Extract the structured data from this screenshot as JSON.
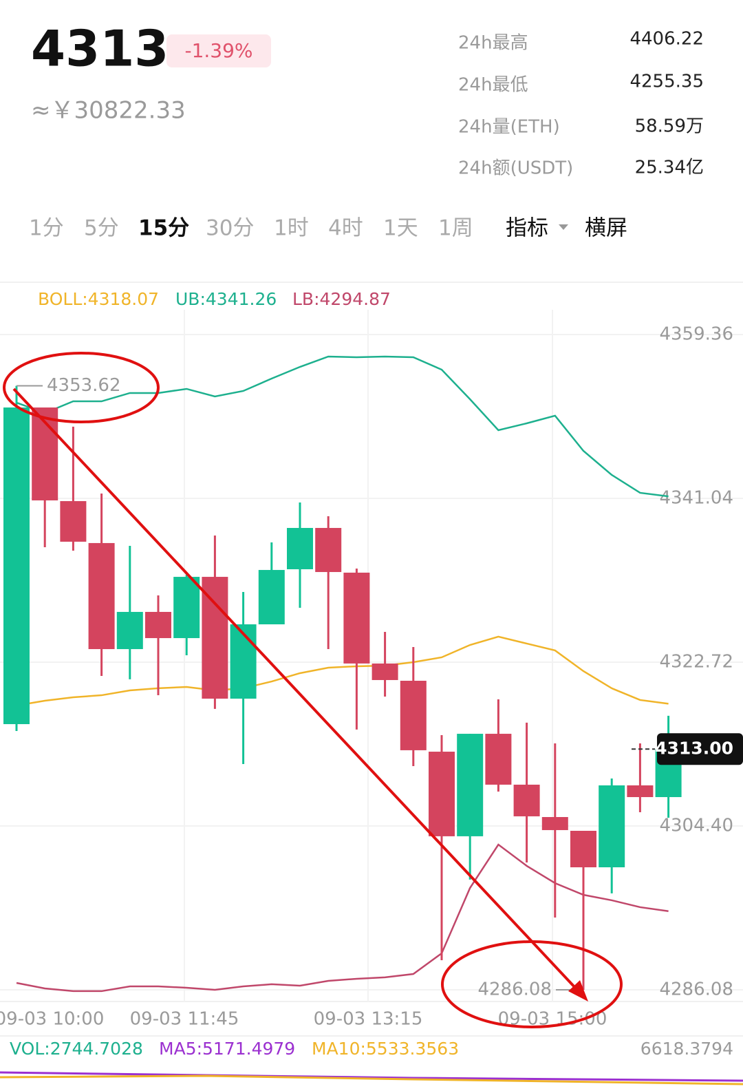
{
  "header": {
    "price": "4313",
    "change": "-1.39%",
    "cny": "≈￥30822.33",
    "stats": [
      {
        "label": "24h最高",
        "value": "4406.22"
      },
      {
        "label": "24h最低",
        "value": "4255.35"
      },
      {
        "label": "24h量(ETH)",
        "value": "58.59万"
      },
      {
        "label": "24h额(USDT)",
        "value": "25.34亿"
      }
    ]
  },
  "tabs": [
    {
      "label": "1分",
      "active": false
    },
    {
      "label": "5分",
      "active": false
    },
    {
      "label": "15分",
      "active": true
    },
    {
      "label": "30分",
      "active": false
    },
    {
      "label": "1时",
      "active": false
    },
    {
      "label": "4时",
      "active": false
    },
    {
      "label": "1天",
      "active": false
    },
    {
      "label": "1周",
      "active": false
    },
    {
      "label": "指标",
      "active": true
    },
    {
      "label": "横屏",
      "active": true
    }
  ],
  "chart_data": {
    "type": "candlestick",
    "up_color": "#12c295",
    "down_color": "#d4445e",
    "ylim": [
      4284.77,
      4362.13
    ],
    "yticks": [
      {
        "value": 4359.36,
        "label": "4359.36"
      },
      {
        "value": 4341.04,
        "label": "4341.04"
      },
      {
        "value": 4322.72,
        "label": "4322.72"
      },
      {
        "value": 4304.4,
        "label": "4304.40"
      },
      {
        "value": 4286.08,
        "label": "4286.08"
      }
    ],
    "xtick_labels": [
      "09-03 10:00",
      "09-03 11:45",
      "09-03 13:15",
      "09-03 15:00"
    ],
    "grid": true,
    "candles": [
      {
        "open": 4315.79,
        "high": 4353.62,
        "low": 4315.02,
        "close": 4351.2
      },
      {
        "open": 4351.2,
        "high": 4351.2,
        "low": 4335.57,
        "close": 4340.81
      },
      {
        "open": 4340.73,
        "high": 4349.05,
        "low": 4335.19,
        "close": 4336.19
      },
      {
        "open": 4336.04,
        "high": 4341.58,
        "low": 4321.18,
        "close": 4324.18
      },
      {
        "open": 4324.18,
        "high": 4335.73,
        "low": 4320.8,
        "close": 4328.34
      },
      {
        "open": 4328.34,
        "high": 4330.19,
        "low": 4319.02,
        "close": 4325.41
      },
      {
        "open": 4325.41,
        "high": 4332.5,
        "low": 4323.49,
        "close": 4332.26
      },
      {
        "open": 4332.26,
        "high": 4336.88,
        "low": 4317.49,
        "close": 4318.64
      },
      {
        "open": 4318.64,
        "high": 4330.57,
        "low": 4311.33,
        "close": 4326.95
      },
      {
        "open": 4326.95,
        "high": 4336.11,
        "low": 4326.95,
        "close": 4333.03
      },
      {
        "open": 4333.11,
        "high": 4340.58,
        "low": 4328.8,
        "close": 4337.73
      },
      {
        "open": 4337.73,
        "high": 4339.04,
        "low": 4324.18,
        "close": 4332.8
      },
      {
        "open": 4332.73,
        "high": 4333.19,
        "low": 4315.18,
        "close": 4322.57
      },
      {
        "open": 4322.57,
        "high": 4326.11,
        "low": 4318.87,
        "close": 4320.72
      },
      {
        "open": 4320.64,
        "high": 4324.41,
        "low": 4311.1,
        "close": 4312.87
      },
      {
        "open": 4312.71,
        "high": 4314.56,
        "low": 4289.39,
        "close": 4303.25
      },
      {
        "open": 4303.25,
        "high": 4314.71,
        "low": 4298.4,
        "close": 4314.71
      },
      {
        "open": 4314.71,
        "high": 4318.56,
        "low": 4308.25,
        "close": 4309.02
      },
      {
        "open": 4309.02,
        "high": 4315.95,
        "low": 4300.32,
        "close": 4305.48
      },
      {
        "open": 4305.4,
        "high": 4313.64,
        "low": 4294.16,
        "close": 4303.94
      },
      {
        "open": 4303.86,
        "high": 4303.86,
        "low": 4286.08,
        "close": 4299.78
      },
      {
        "open": 4299.78,
        "high": 4309.71,
        "low": 4296.86,
        "close": 4308.94
      },
      {
        "open": 4308.94,
        "high": 4313.64,
        "low": 4305.94,
        "close": 4307.63
      },
      {
        "open": 4307.63,
        "high": 4316.72,
        "low": 4305.32,
        "close": 4313.0
      }
    ],
    "series": [
      {
        "label": "BOLL:4318.07",
        "color": "#f0b429",
        "values": [
          4317.87,
          4318.41,
          4318.79,
          4319.02,
          4319.56,
          4319.8,
          4319.95,
          4319.56,
          4319.8,
          4320.56,
          4321.49,
          4322.1,
          4322.26,
          4322.33,
          4322.72,
          4323.26,
          4324.64,
          4325.57,
          4324.8,
          4324.03,
          4321.72,
          4319.8,
          4318.49,
          4318.07
        ]
      },
      {
        "label": "UB:4341.26",
        "color": "#1db08e",
        "values": [
          4351.74,
          4350.58,
          4351.89,
          4351.89,
          4352.82,
          4352.82,
          4353.28,
          4352.43,
          4353.05,
          4354.43,
          4355.74,
          4356.9,
          4356.82,
          4356.9,
          4356.82,
          4355.43,
          4352.12,
          4348.66,
          4349.43,
          4350.28,
          4346.35,
          4343.66,
          4341.66,
          4341.26
        ]
      },
      {
        "label": "LB:4294.87",
        "color": "#c0476a",
        "values": [
          4286.85,
          4286.23,
          4285.93,
          4285.93,
          4286.46,
          4286.46,
          4286.31,
          4286.08,
          4286.46,
          4286.7,
          4286.54,
          4287.08,
          4287.31,
          4287.47,
          4287.85,
          4290.16,
          4297.47,
          4302.32,
          4299.94,
          4298.01,
          4296.7,
          4296.09,
          4295.32,
          4294.87
        ]
      }
    ],
    "annotations": {
      "high": {
        "value": 4353.62,
        "label": "4353.62"
      },
      "low": {
        "value": 4286.08,
        "label": "4286.08"
      },
      "last": {
        "value": 4313.0,
        "label": "4313.00"
      }
    },
    "volume_legend": [
      {
        "label": "VOL:2744.7028",
        "color": "#1db08e"
      },
      {
        "label": "MA5:5171.4979",
        "color": "#9b30d0"
      },
      {
        "label": "MA10:5533.3563",
        "color": "#f0b429"
      }
    ],
    "volume_max_label": "6618.3794"
  }
}
